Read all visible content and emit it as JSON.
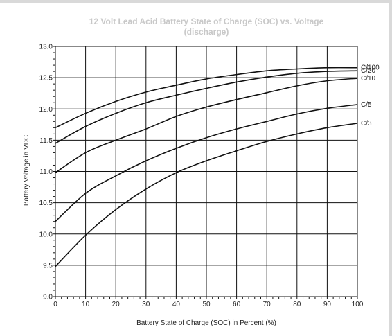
{
  "chart_data": {
    "type": "line",
    "title_line1": "12 Volt Lead Acid Battery State of Charge (SOC) vs. Voltage",
    "title_line2": "(discharge)",
    "xlabel": "Battery State of Charge (SOC) in Percent (%)",
    "ylabel": "Battery Voltage in VDC",
    "xlim": [
      0,
      100
    ],
    "ylim": [
      9.0,
      13.0
    ],
    "x_ticks": [
      "0",
      "10",
      "20",
      "30",
      "40",
      "50",
      "60",
      "70",
      "80",
      "90",
      "100"
    ],
    "y_ticks": [
      "9.0",
      "9.5",
      "10.0",
      "10.5",
      "11.0",
      "11.5",
      "12.0",
      "12.5",
      "13.0"
    ],
    "grid": true,
    "x": [
      0,
      10,
      20,
      30,
      40,
      50,
      60,
      70,
      80,
      90,
      100
    ],
    "series": [
      {
        "name": "C/100",
        "values": [
          11.7,
          11.93,
          12.12,
          12.27,
          12.38,
          12.48,
          12.55,
          12.61,
          12.64,
          12.66,
          12.66
        ]
      },
      {
        "name": "C/20",
        "values": [
          11.45,
          11.72,
          11.93,
          12.1,
          12.22,
          12.33,
          12.43,
          12.51,
          12.57,
          12.6,
          12.61
        ]
      },
      {
        "name": "C/10",
        "values": [
          10.98,
          11.3,
          11.5,
          11.68,
          11.88,
          12.03,
          12.15,
          12.26,
          12.37,
          12.45,
          12.49
        ]
      },
      {
        "name": "C/5",
        "values": [
          10.2,
          10.65,
          10.93,
          11.17,
          11.37,
          11.54,
          11.68,
          11.8,
          11.92,
          12.01,
          12.07
        ]
      },
      {
        "name": "C/3",
        "values": [
          9.48,
          9.98,
          10.39,
          10.72,
          10.98,
          11.17,
          11.33,
          11.48,
          11.6,
          11.7,
          11.77
        ]
      }
    ]
  }
}
